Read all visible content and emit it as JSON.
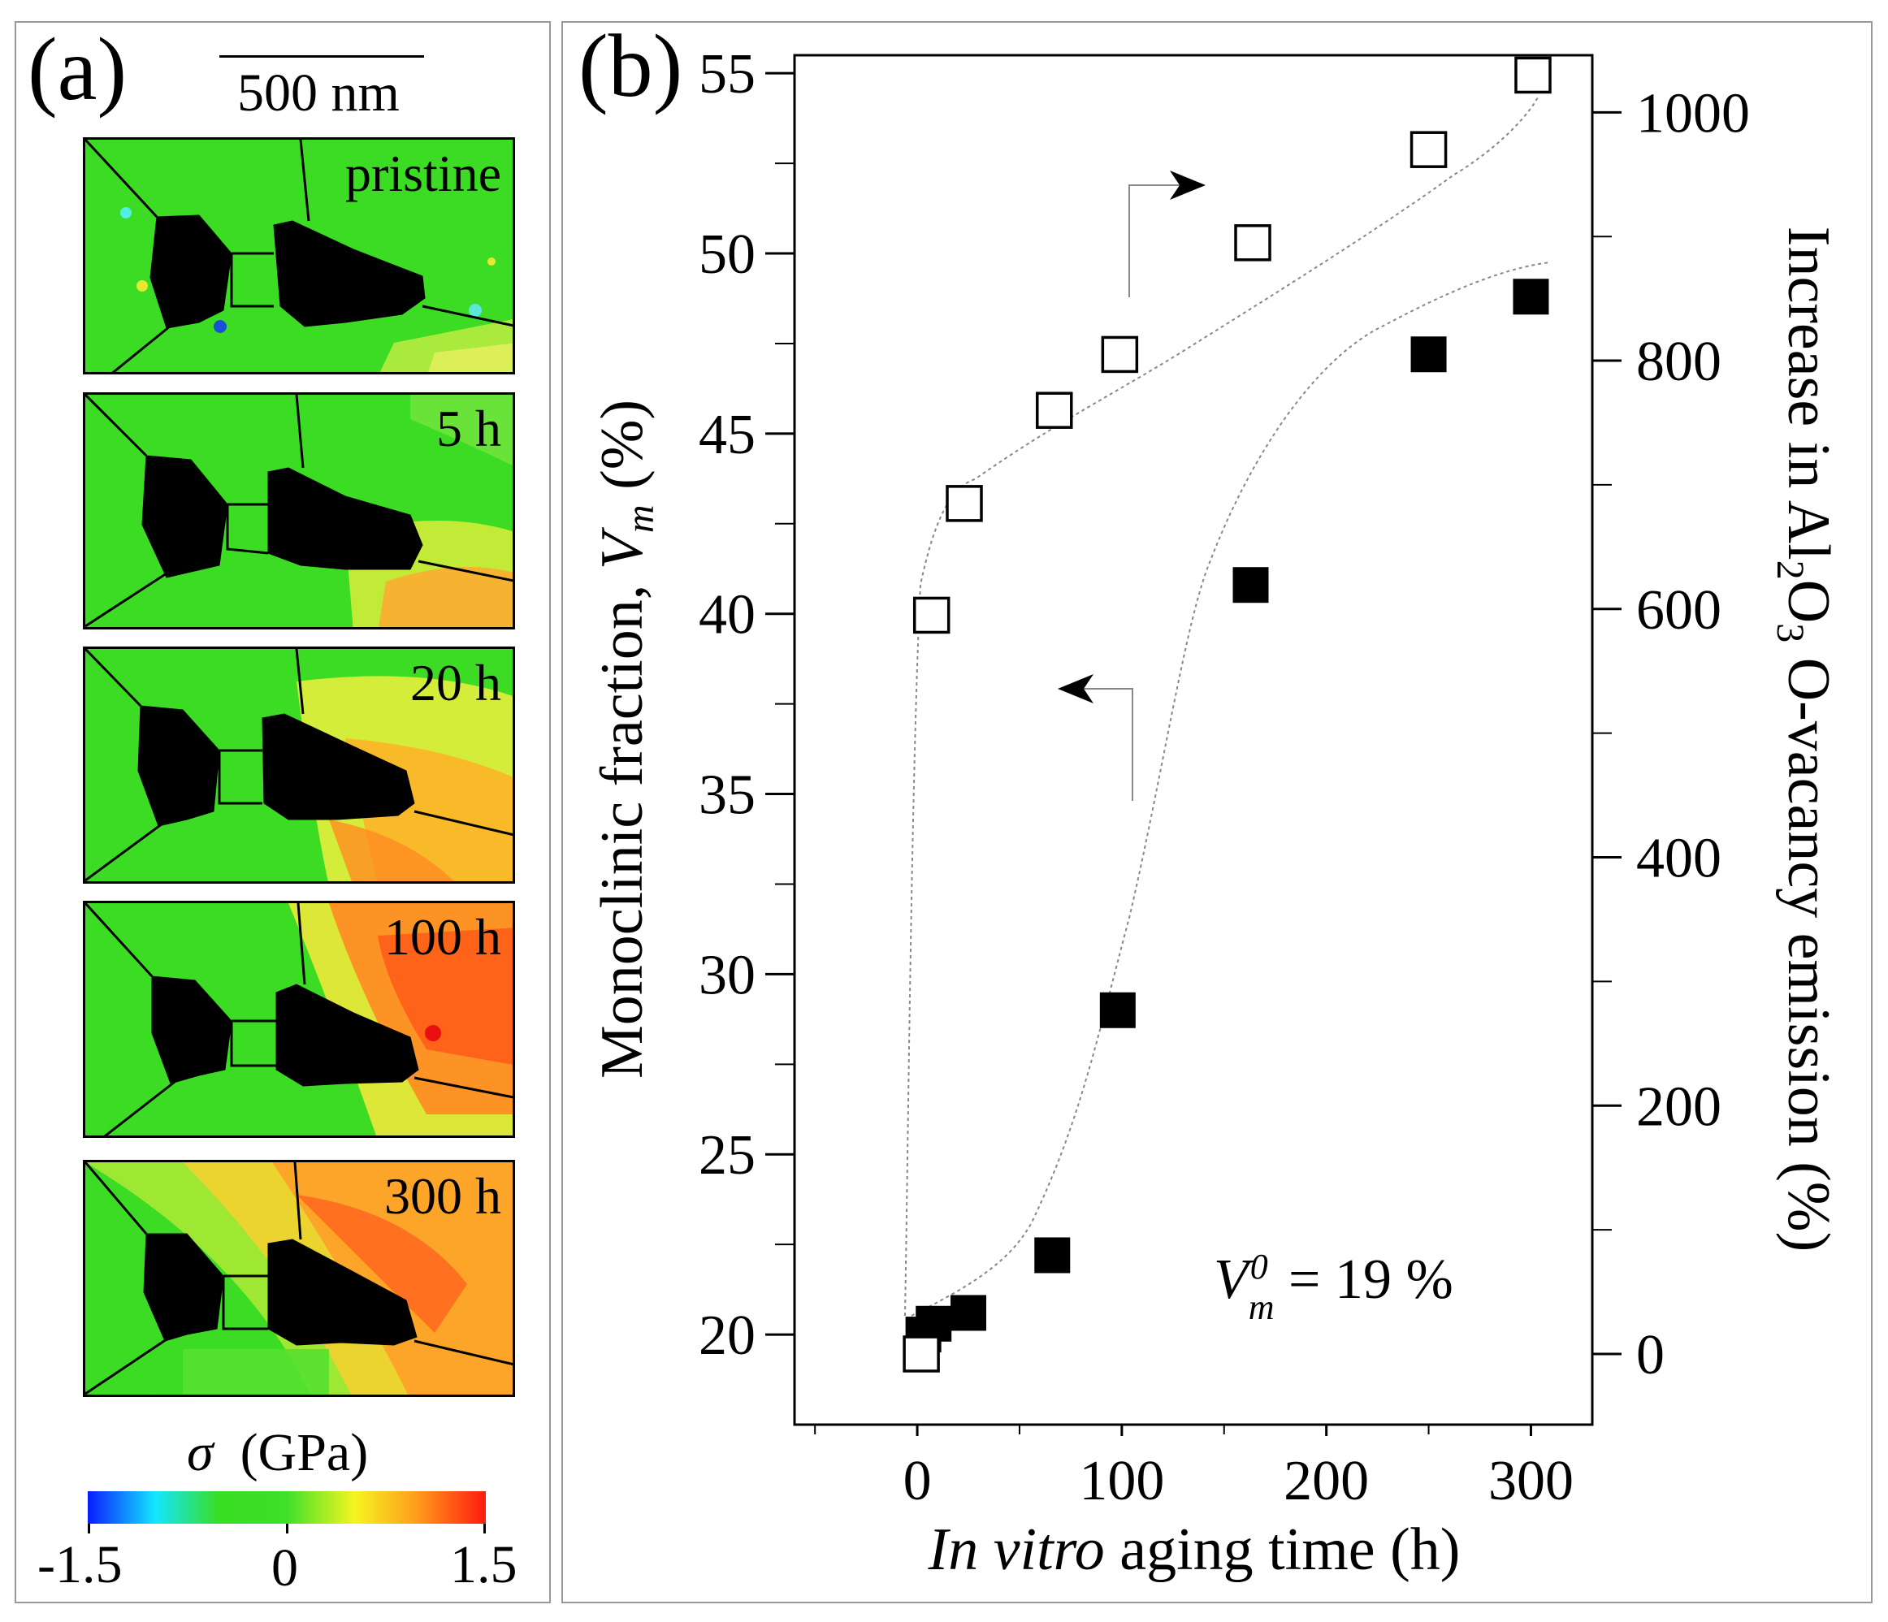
{
  "panel_a": {
    "label": "(a)",
    "scale_bar": "500 nm",
    "maps": [
      {
        "label": "pristine",
        "stress_level": "low"
      },
      {
        "label": "5 h",
        "stress_level": "low-mid"
      },
      {
        "label": "20 h",
        "stress_level": "mid"
      },
      {
        "label": "100 h",
        "stress_level": "high"
      },
      {
        "label": "300 h",
        "stress_level": "high"
      }
    ],
    "colorbar": {
      "title_symbol": "σ",
      "title_unit": "(GPa)",
      "min_label": "-1.5",
      "mid_label": "0",
      "max_label": "1.5",
      "range": [
        -1.5,
        1.5
      ],
      "colors": [
        "#0a1cff",
        "#14e6ff",
        "#38de22",
        "#3ee02a",
        "#f5f520",
        "#ff9a1c",
        "#ff1a10"
      ]
    }
  },
  "chart_data": {
    "type": "scatter",
    "label": "(b)",
    "xlabel_italic": "In vitro",
    "xlabel_rest": " aging time (h)",
    "ylabel_text": "Monoclinic fraction, ",
    "ylabel_var": "V",
    "ylabel_sub": "m",
    "ylabel_unit": " (%)",
    "y2label_pre": "Increase in Al",
    "y2label_sub1": "2",
    "y2label_mid": "O",
    "y2label_sub2": "3",
    "y2label_post": " O-vacancy emission (%)",
    "xlim": [
      -60,
      330
    ],
    "xticks": [
      0,
      100,
      200,
      300
    ],
    "xtick_labels": [
      "0",
      "100",
      "200",
      "300"
    ],
    "ylim": [
      17.5,
      55.5
    ],
    "yticks": [
      20,
      25,
      30,
      35,
      40,
      45,
      50,
      55
    ],
    "ytick_labels": [
      "20",
      "25",
      "30",
      "35",
      "40",
      "45",
      "50",
      "55"
    ],
    "y2lim": [
      -56.9,
      1046
    ],
    "y2ticks": [
      0,
      200,
      400,
      600,
      800,
      1000
    ],
    "y2tick_labels": [
      "0",
      "200",
      "400",
      "600",
      "800",
      "1000"
    ],
    "annotation_var": "V",
    "annotation_sup": "0",
    "annotation_sub": "m",
    "annotation_rest": " = 19 %",
    "series": [
      {
        "name": "Monoclinic fraction Vm",
        "axis": "left",
        "marker": "filled-square",
        "x": [
          3,
          8,
          25,
          66,
          98,
          163,
          250,
          300
        ],
        "y": [
          20.0,
          20.3,
          20.6,
          22.2,
          29.0,
          40.8,
          47.2,
          48.8
        ]
      },
      {
        "name": "Increase in Al2O3 O-vacancy emission",
        "axis": "right",
        "marker": "open-square",
        "x": [
          2,
          7,
          23,
          67,
          99,
          164,
          250,
          301
        ],
        "y": [
          0,
          595,
          685,
          760,
          805,
          895,
          970,
          1030
        ]
      }
    ]
  }
}
